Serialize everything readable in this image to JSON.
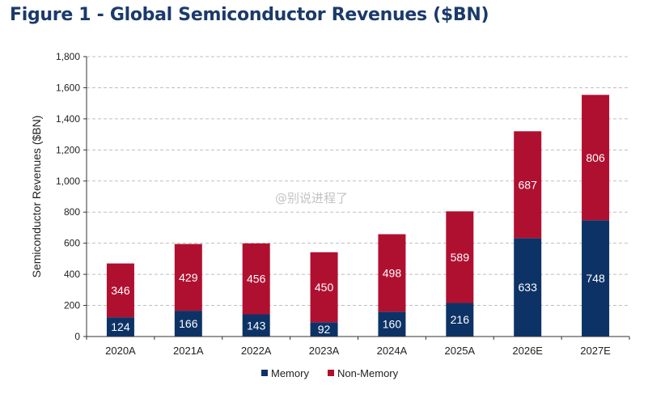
{
  "figure": {
    "title": "Figure 1 - Global Semiconductor Revenues ($BN)"
  },
  "watermark": "@别说进程了",
  "colors": {
    "memory": "#0d3366",
    "non_memory": "#b01030",
    "grid": "#bfbfbf",
    "axis": "#333333",
    "title": "#1b3a6b"
  },
  "chart_data": {
    "type": "bar",
    "stacked": true,
    "title": "Figure 1 - Global Semiconductor Revenues ($BN)",
    "xlabel": "",
    "ylabel": "Semiconductor Revenues ($BN)",
    "ylim": [
      0,
      1800
    ],
    "yticks": [
      0,
      200,
      400,
      600,
      800,
      1000,
      1200,
      1400,
      1600,
      1800
    ],
    "ytick_labels": [
      "0",
      "200",
      "400",
      "600",
      "800",
      "1,000",
      "1,200",
      "1,400",
      "1,600",
      "1,800"
    ],
    "categories": [
      "2020A",
      "2021A",
      "2022A",
      "2023A",
      "2024A",
      "2025A",
      "2026E",
      "2027E"
    ],
    "series": [
      {
        "name": "Memory",
        "color": "#0d3366",
        "values": [
          124,
          166,
          143,
          92,
          160,
          216,
          633,
          748
        ]
      },
      {
        "name": "Non-Memory",
        "color": "#b01030",
        "values": [
          346,
          429,
          456,
          450,
          498,
          589,
          687,
          806
        ]
      }
    ],
    "grid": true,
    "legend": "bottom-center"
  }
}
